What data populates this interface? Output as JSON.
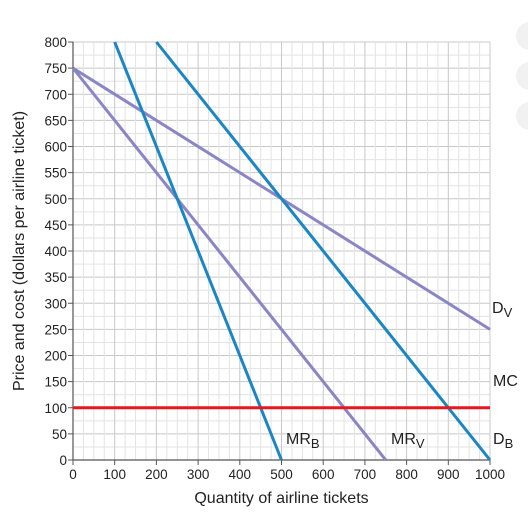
{
  "chart_data": {
    "type": "line",
    "title": "",
    "xlabel": "Quantity of airline tickets",
    "ylabel": "Price and cost (dollars per airline ticket)",
    "xlim": [
      0,
      1000
    ],
    "ylim": [
      0,
      800
    ],
    "xticks": [
      "0",
      "100",
      "200",
      "300",
      "400",
      "500",
      "600",
      "700",
      "800",
      "900",
      "1000"
    ],
    "yticks": [
      "0",
      "50",
      "100",
      "150",
      "200",
      "250",
      "300",
      "350",
      "400",
      "450",
      "500",
      "550",
      "600",
      "650",
      "700",
      "750",
      "800"
    ],
    "grid": true,
    "series": [
      {
        "id": "dv",
        "label": "D",
        "sub": "V",
        "color": "#8a86c6",
        "points": [
          [
            0,
            750
          ],
          [
            1000,
            250
          ]
        ]
      },
      {
        "id": "mrv",
        "label": "MR",
        "sub": "V",
        "color": "#8a86c6",
        "points": [
          [
            0,
            750
          ],
          [
            750,
            0
          ]
        ]
      },
      {
        "id": "db",
        "label": "D",
        "sub": "B",
        "color": "#1a86c4",
        "points": [
          [
            200,
            800
          ],
          [
            1000,
            0
          ]
        ]
      },
      {
        "id": "mrb",
        "label": "MR",
        "sub": "B",
        "color": "#1a86c4",
        "points": [
          [
            100,
            800
          ],
          [
            500,
            0
          ]
        ]
      },
      {
        "id": "mc",
        "label": "MC",
        "sub": "",
        "color": "#e8171d",
        "points": [
          [
            0,
            100
          ],
          [
            1000,
            100
          ]
        ]
      }
    ]
  }
}
